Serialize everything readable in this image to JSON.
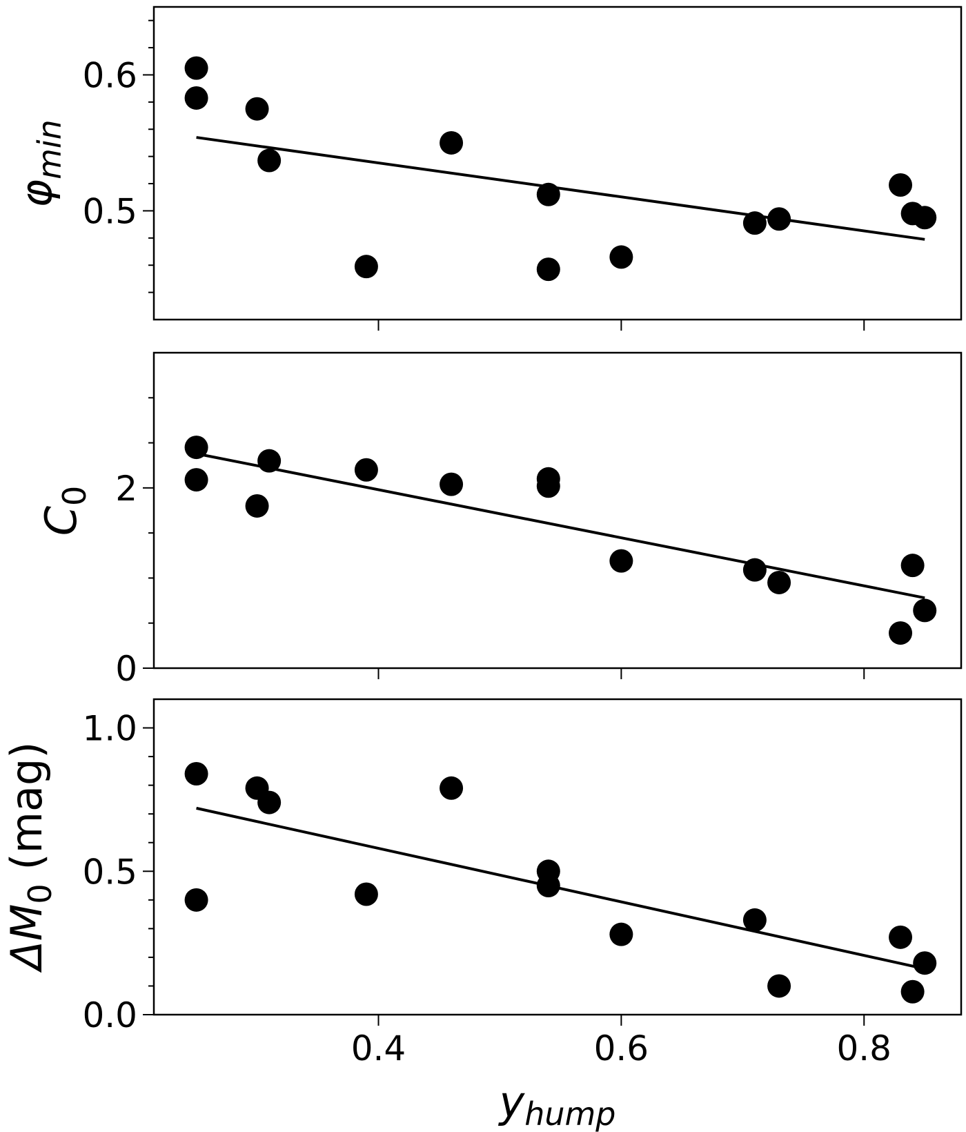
{
  "chart_data": [
    {
      "type": "scatter",
      "ylabel": "φmin",
      "ylabel_main": "φ",
      "ylabel_sub": "min",
      "xlim": [
        0.215,
        0.88
      ],
      "ylim": [
        0.42,
        0.65
      ],
      "yticks": [
        0.5,
        0.6
      ],
      "ytick_labels": [
        "0.5",
        "0.6"
      ],
      "yminor": [
        0.44,
        0.46,
        0.48,
        0.52,
        0.54,
        0.56,
        0.58,
        0.62,
        0.64
      ],
      "x": [
        0.25,
        0.25,
        0.3,
        0.31,
        0.39,
        0.46,
        0.54,
        0.54,
        0.6,
        0.71,
        0.73,
        0.83,
        0.84,
        0.85
      ],
      "y": [
        0.605,
        0.583,
        0.575,
        0.537,
        0.459,
        0.55,
        0.512,
        0.457,
        0.466,
        0.491,
        0.494,
        0.519,
        0.498,
        0.495
      ],
      "fit": {
        "x": [
          0.25,
          0.85
        ],
        "y": [
          0.554,
          0.479
        ]
      }
    },
    {
      "type": "scatter",
      "ylabel": "C0",
      "ylabel_main": "C",
      "ylabel_sub": "0",
      "xlim": [
        0.215,
        0.88
      ],
      "ylim": [
        0.0,
        3.5
      ],
      "yticks": [
        0,
        2
      ],
      "ytick_labels": [
        "0",
        "2"
      ],
      "yminor": [
        0.5,
        1.0,
        1.5,
        2.5,
        3.0
      ],
      "x": [
        0.25,
        0.25,
        0.3,
        0.31,
        0.39,
        0.46,
        0.54,
        0.54,
        0.6,
        0.71,
        0.73,
        0.83,
        0.84,
        0.85
      ],
      "y": [
        2.45,
        2.09,
        1.8,
        2.3,
        2.2,
        2.04,
        2.02,
        2.1,
        1.19,
        1.09,
        0.95,
        0.39,
        1.14,
        0.64
      ],
      "fit": {
        "x": [
          0.25,
          0.85
        ],
        "y": [
          2.38,
          0.78
        ]
      }
    },
    {
      "type": "scatter",
      "ylabel": "ΔM0 (mag)",
      "ylabel_main": "ΔM",
      "ylabel_sub": "0",
      "ylabel_suffix": " (mag)",
      "xlabel": "yhump",
      "xlabel_main": "y",
      "xlabel_sub": "hump",
      "xlim": [
        0.215,
        0.88
      ],
      "ylim": [
        0.0,
        1.1
      ],
      "yticks": [
        0.0,
        0.5,
        1.0
      ],
      "ytick_labels": [
        "0.0",
        "0.5",
        "1.0"
      ],
      "yminor": [
        0.1,
        0.2,
        0.3,
        0.4,
        0.6,
        0.7,
        0.8,
        0.9
      ],
      "xticks": [
        0.4,
        0.6,
        0.8
      ],
      "xtick_labels": [
        "0.4",
        "0.6",
        "0.8"
      ],
      "x": [
        0.25,
        0.25,
        0.3,
        0.31,
        0.39,
        0.46,
        0.54,
        0.54,
        0.6,
        0.71,
        0.73,
        0.83,
        0.84,
        0.85
      ],
      "y": [
        0.84,
        0.4,
        0.79,
        0.74,
        0.42,
        0.79,
        0.5,
        0.45,
        0.28,
        0.33,
        0.1,
        0.27,
        0.08,
        0.18
      ],
      "fit": {
        "x": [
          0.25,
          0.85
        ],
        "y": [
          0.72,
          0.16
        ]
      }
    }
  ]
}
